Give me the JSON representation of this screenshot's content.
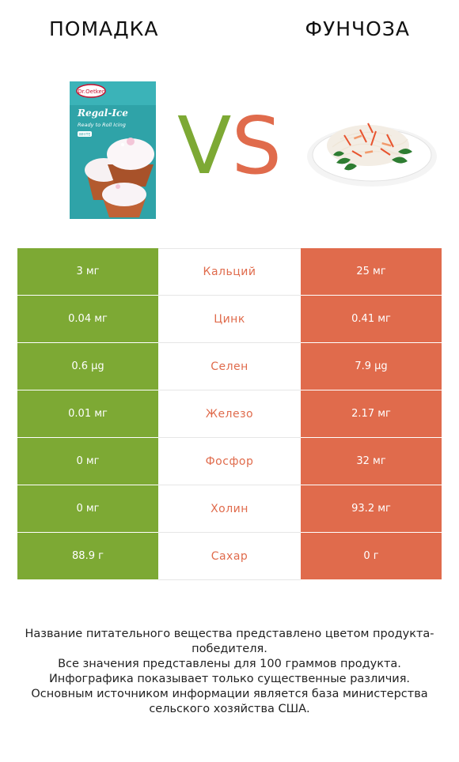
{
  "header": {
    "left_title": "ПОМАДКА",
    "right_title": "ФУНЧОЗА",
    "vs_v": "V",
    "vs_s": "S"
  },
  "colors": {
    "left_accent": "#7da934",
    "right_accent": "#e06b4c"
  },
  "product_left": {
    "brand": "Dr.Oetker",
    "name": "Regal-Ice",
    "tagline": "Ready to Roll Icing",
    "variant": "WHITE"
  },
  "rows": [
    {
      "left": "3 мг",
      "label": "Кальций",
      "right": "25 мг"
    },
    {
      "left": "0.04 мг",
      "label": "Цинк",
      "right": "0.41 мг"
    },
    {
      "left": "0.6 µg",
      "label": "Селен",
      "right": "7.9 µg"
    },
    {
      "left": "0.01 мг",
      "label": "Железо",
      "right": "2.17 мг"
    },
    {
      "left": "0 мг",
      "label": "Фосфор",
      "right": "32 мг"
    },
    {
      "left": "0 мг",
      "label": "Холин",
      "right": "93.2 мг"
    },
    {
      "left": "88.9 г",
      "label": "Сахар",
      "right": "0 г"
    }
  ],
  "footer": {
    "line1": "Название питательного вещества представлено цветом продукта-победителя.",
    "line2": "Все значения представлены для 100 граммов продукта.",
    "line3": "Инфографика показывает только существенные различия.",
    "line4": "Основным источником информации является база министерства сельского хозяйства США."
  }
}
